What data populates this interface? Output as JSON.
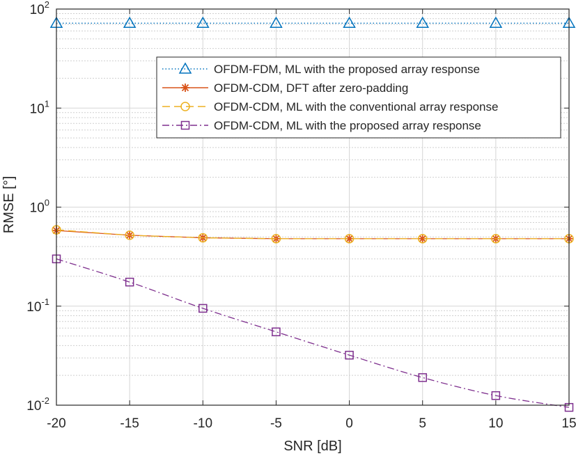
{
  "chart_data": {
    "type": "line",
    "title": "",
    "xlabel": "SNR [dB]",
    "ylabel": "RMSE [°]",
    "yscale": "log",
    "xlim": [
      -20,
      15
    ],
    "ylim": [
      0.01,
      100
    ],
    "grid": true,
    "legend_position": "top-right",
    "x": [
      -20,
      -15,
      -10,
      -5,
      0,
      5,
      10,
      15
    ],
    "x_tick_labels": [
      "-20",
      "-15",
      "-10",
      "-5",
      "0",
      "5",
      "10",
      "15"
    ],
    "y_ticks": [
      {
        "value": 100,
        "base": "10",
        "exp": "2"
      },
      {
        "value": 10,
        "base": "10",
        "exp": "1"
      },
      {
        "value": 1,
        "base": "10",
        "exp": "0"
      },
      {
        "value": 0.1,
        "base": "10",
        "exp": "-1"
      },
      {
        "value": 0.01,
        "base": "10",
        "exp": "-2"
      }
    ],
    "series": [
      {
        "name": "OFDM-FDM, ML with the proposed array response",
        "color": "#0072BD",
        "dash": "dotted",
        "marker": "triangle",
        "values": [
          72,
          72,
          72,
          72,
          72,
          72,
          72,
          72
        ]
      },
      {
        "name": "OFDM-CDM, DFT after zero-padding",
        "color": "#D95319",
        "dash": "solid",
        "marker": "asterisk",
        "values": [
          0.58,
          0.52,
          0.49,
          0.48,
          0.48,
          0.48,
          0.48,
          0.48
        ]
      },
      {
        "name": "OFDM-CDM, ML with the conventional array response",
        "color": "#EDB120",
        "dash": "dashed",
        "marker": "circle",
        "values": [
          0.59,
          0.52,
          0.49,
          0.48,
          0.48,
          0.48,
          0.48,
          0.48
        ]
      },
      {
        "name": "OFDM-CDM, ML with the proposed array response",
        "color": "#7E2F8E",
        "dash": "dashdot",
        "marker": "square",
        "values": [
          0.3,
          0.175,
          0.095,
          0.055,
          0.032,
          0.019,
          0.0125,
          0.0095
        ]
      }
    ]
  }
}
